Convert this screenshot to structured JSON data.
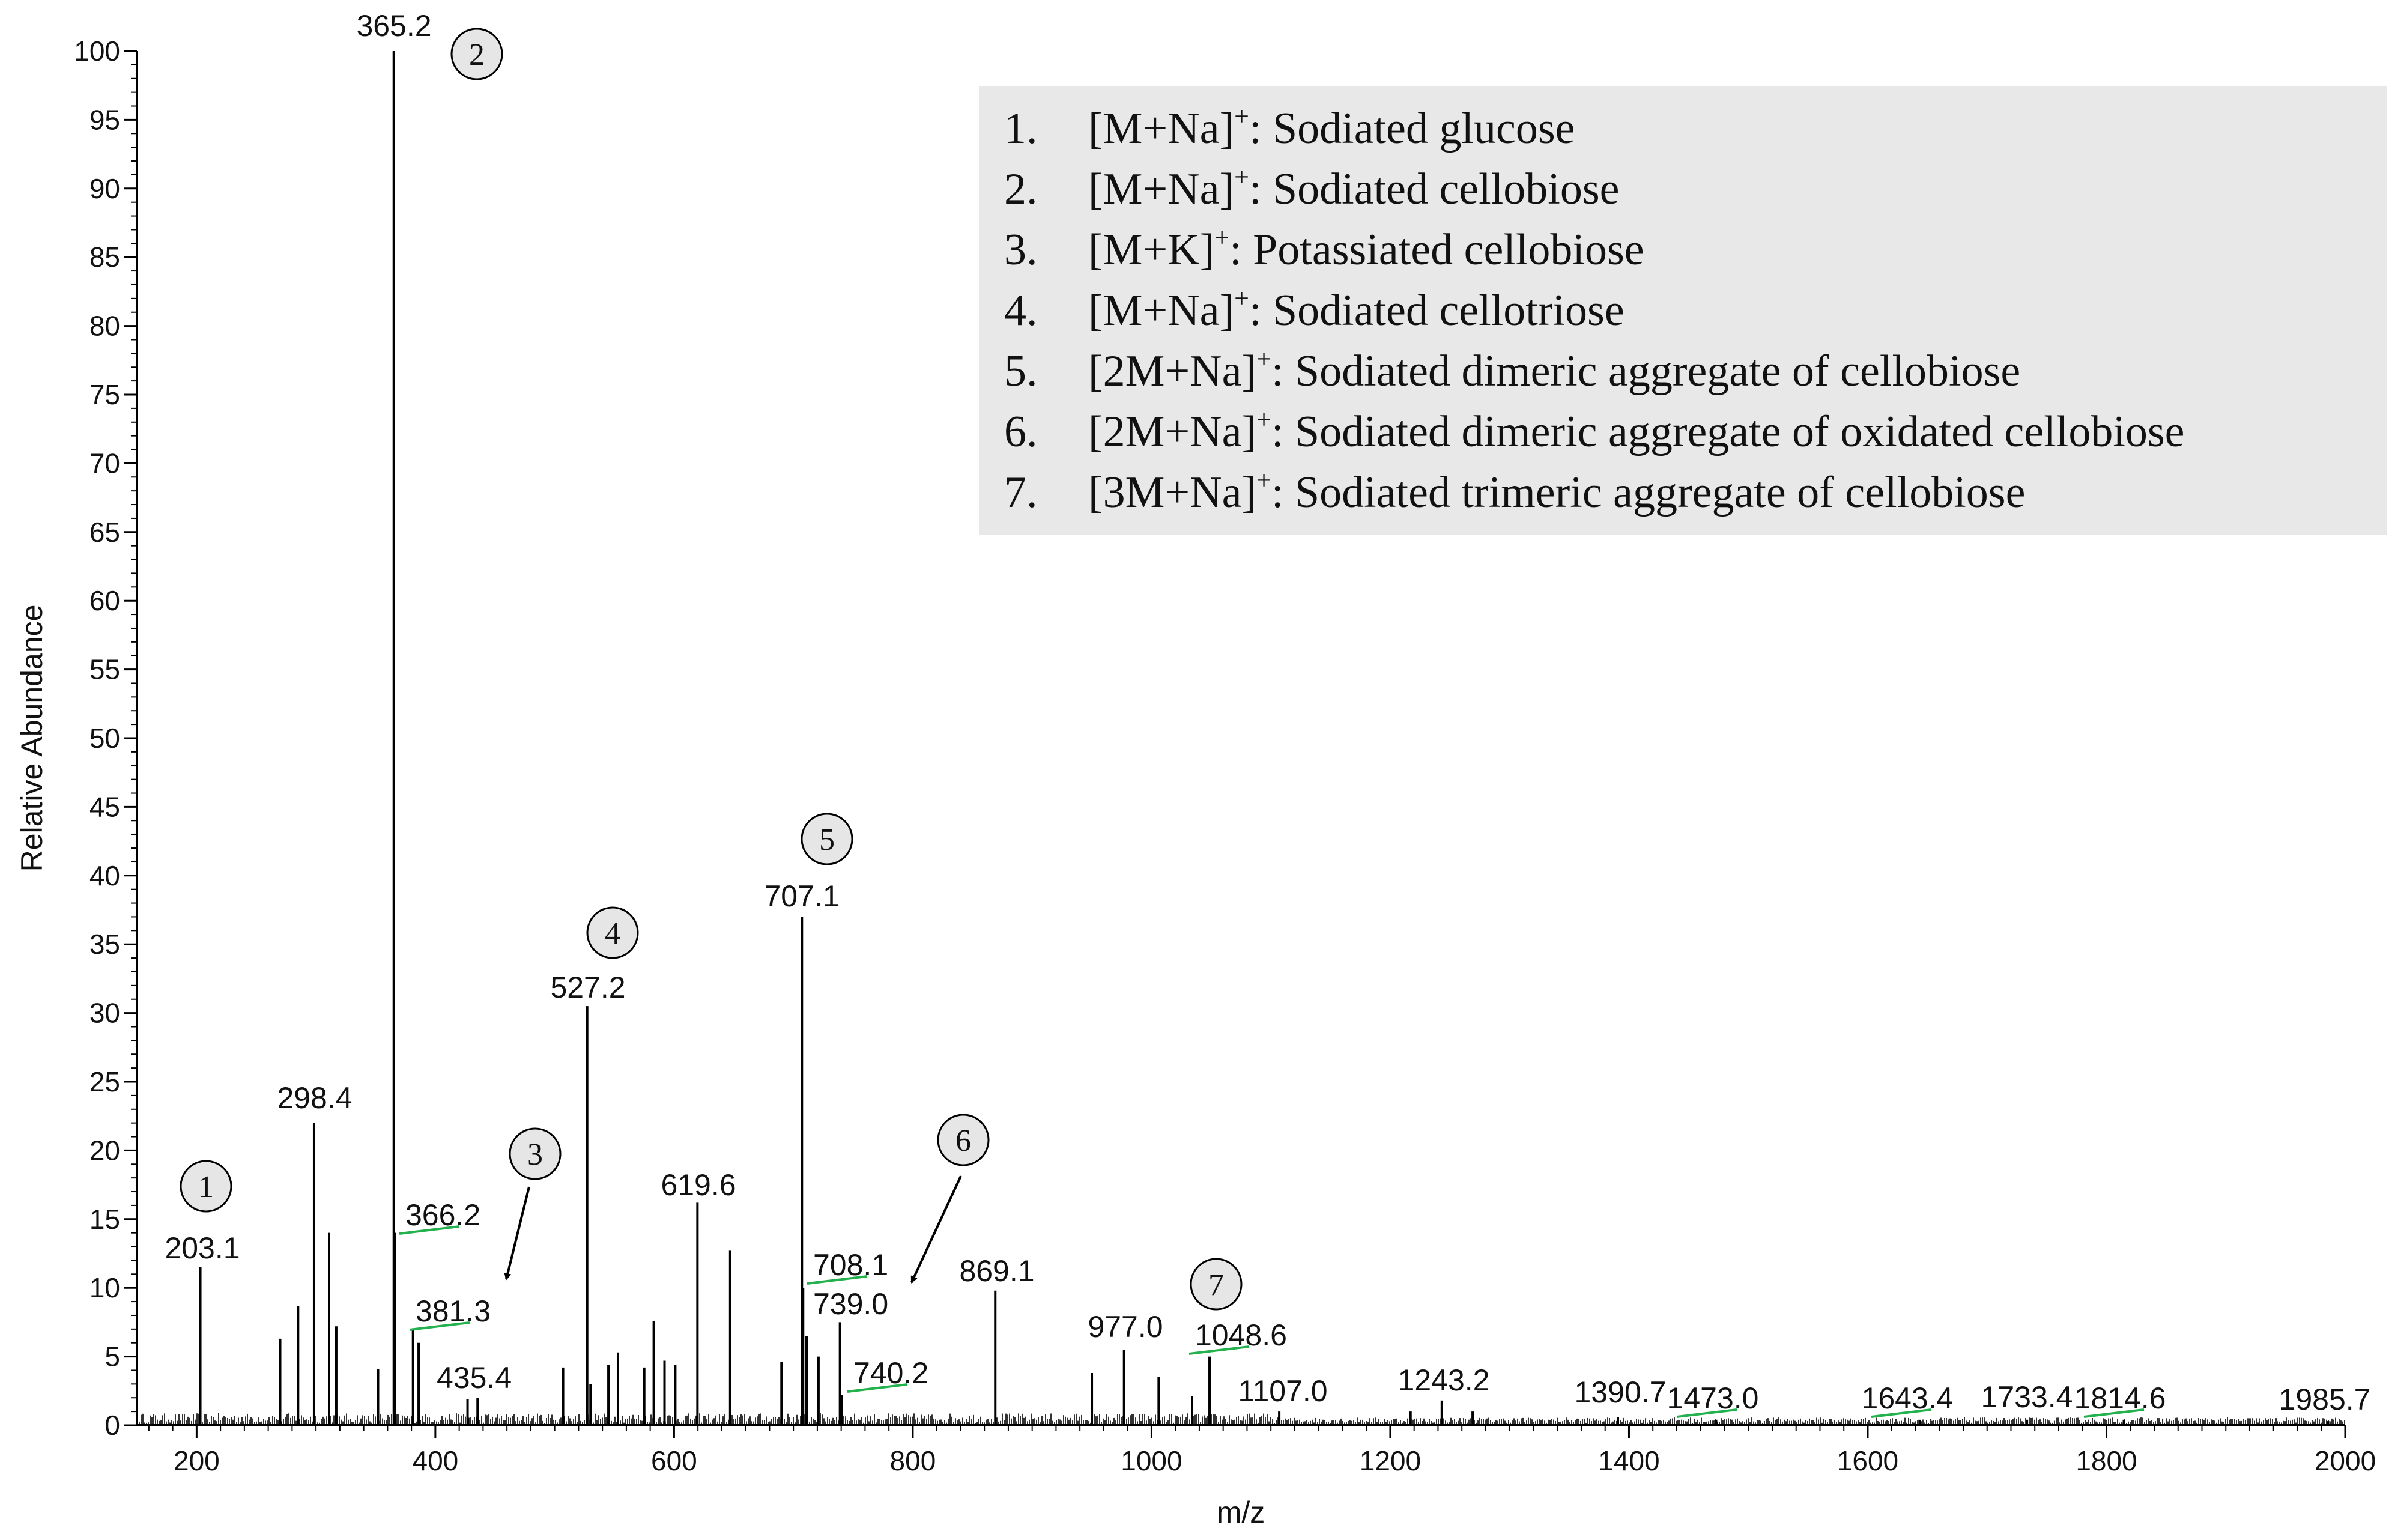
{
  "chart_data": {
    "type": "bar",
    "subtype": "mass-spectrum",
    "xlabel": "m/z",
    "ylabel": "Relative Abundance",
    "xlim": [
      150,
      2000
    ],
    "ylim": [
      0,
      100
    ],
    "x_ticks": [
      "200",
      "400",
      "600",
      "800",
      "1000",
      "1200",
      "1400",
      "1600",
      "1800",
      "2000"
    ],
    "y_ticks": [
      "0",
      "5",
      "10",
      "15",
      "20",
      "25",
      "30",
      "35",
      "40",
      "45",
      "50",
      "55",
      "60",
      "65",
      "70",
      "75",
      "80",
      "85",
      "90",
      "95",
      "100"
    ],
    "labeled_peaks": [
      {
        "mz": 203.1,
        "abundance": 11.5,
        "label": "203.1"
      },
      {
        "mz": 298.4,
        "abundance": 22.0,
        "label": "298.4"
      },
      {
        "mz": 365.2,
        "abundance": 100.0,
        "label": "365.2"
      },
      {
        "mz": 366.2,
        "abundance": 14.0,
        "label": "366.2"
      },
      {
        "mz": 381.3,
        "abundance": 7.0,
        "label": "381.3"
      },
      {
        "mz": 435.4,
        "abundance": 2.0,
        "label": "435.4"
      },
      {
        "mz": 527.2,
        "abundance": 30.5,
        "label": "527.2"
      },
      {
        "mz": 619.6,
        "abundance": 16.2,
        "label": "619.6"
      },
      {
        "mz": 707.1,
        "abundance": 37.0,
        "label": "707.1"
      },
      {
        "mz": 708.1,
        "abundance": 10.0,
        "label": "708.1"
      },
      {
        "mz": 739.0,
        "abundance": 7.5,
        "label": "739.0"
      },
      {
        "mz": 740.2,
        "abundance": 2.2,
        "label": "740.2"
      },
      {
        "mz": 869.1,
        "abundance": 9.8,
        "label": "869.1"
      },
      {
        "mz": 977.0,
        "abundance": 5.5,
        "label": "977.0"
      },
      {
        "mz": 1048.6,
        "abundance": 5.0,
        "label": "1048.6"
      },
      {
        "mz": 1107.0,
        "abundance": 1.0,
        "label": "1107.0"
      },
      {
        "mz": 1243.2,
        "abundance": 1.8,
        "label": "1243.2"
      },
      {
        "mz": 1390.7,
        "abundance": 0.6,
        "label": "1390.7"
      },
      {
        "mz": 1473.0,
        "abundance": 0.4,
        "label": "1473.0"
      },
      {
        "mz": 1643.4,
        "abundance": 0.4,
        "label": "1643.4"
      },
      {
        "mz": 1733.4,
        "abundance": 0.4,
        "label": "1733.4"
      },
      {
        "mz": 1814.6,
        "abundance": 0.4,
        "label": "1814.6"
      },
      {
        "mz": 1985.7,
        "abundance": 0.3,
        "label": "1985.7"
      }
    ],
    "minor_peaks": [
      {
        "mz": 270,
        "abundance": 6.3
      },
      {
        "mz": 285,
        "abundance": 8.7
      },
      {
        "mz": 311,
        "abundance": 14.0
      },
      {
        "mz": 317,
        "abundance": 7.2
      },
      {
        "mz": 352,
        "abundance": 4.1
      },
      {
        "mz": 386,
        "abundance": 6.0
      },
      {
        "mz": 427,
        "abundance": 1.9
      },
      {
        "mz": 507,
        "abundance": 4.2
      },
      {
        "mz": 530,
        "abundance": 3.0
      },
      {
        "mz": 545,
        "abundance": 4.4
      },
      {
        "mz": 553,
        "abundance": 5.3
      },
      {
        "mz": 575,
        "abundance": 4.2
      },
      {
        "mz": 583,
        "abundance": 7.6
      },
      {
        "mz": 592,
        "abundance": 4.7
      },
      {
        "mz": 601,
        "abundance": 4.4
      },
      {
        "mz": 647,
        "abundance": 12.7
      },
      {
        "mz": 690,
        "abundance": 4.6
      },
      {
        "mz": 711,
        "abundance": 6.5
      },
      {
        "mz": 721,
        "abundance": 5.0
      },
      {
        "mz": 950,
        "abundance": 3.8
      },
      {
        "mz": 1006,
        "abundance": 3.5
      },
      {
        "mz": 1034,
        "abundance": 2.1
      },
      {
        "mz": 1217,
        "abundance": 1.0
      },
      {
        "mz": 1269,
        "abundance": 1.0
      }
    ],
    "markers": [
      {
        "id": "1",
        "mz": 203.1
      },
      {
        "id": "2",
        "mz": 365.2
      },
      {
        "id": "3",
        "mz": 381.3
      },
      {
        "id": "4",
        "mz": 527.2
      },
      {
        "id": "5",
        "mz": 707.1
      },
      {
        "id": "6",
        "mz": 739.0
      },
      {
        "id": "7",
        "mz": 1048.6
      }
    ],
    "legend_placement": "top-right",
    "legend": [
      {
        "num": "1.",
        "ion": "[M+Na]",
        "desc": ": Sodiated glucose"
      },
      {
        "num": "2.",
        "ion": "[M+Na]",
        "desc": ": Sodiated cellobiose"
      },
      {
        "num": "3.",
        "ion": "[M+K]",
        "desc": ": Potassiated cellobiose"
      },
      {
        "num": "4.",
        "ion": "[M+Na]",
        "desc": ": Sodiated cellotriose"
      },
      {
        "num": "5.",
        "ion": "[2M+Na]",
        "desc": ": Sodiated dimeric aggregate of cellobiose"
      },
      {
        "num": "6.",
        "ion": "[2M+Na]",
        "desc": ": Sodiated dimeric aggregate of oxidated cellobiose"
      },
      {
        "num": "7.",
        "ion": "[3M+Na]",
        "desc": ": Sodiated trimeric aggregate of cellobiose"
      }
    ],
    "legend_superscript": "+",
    "grid": false
  },
  "colors": {
    "peak": "#000000",
    "label_leader": "#22b14c",
    "legend_bg": "#e8e8e8",
    "marker_fill": "#e6e6e6"
  }
}
